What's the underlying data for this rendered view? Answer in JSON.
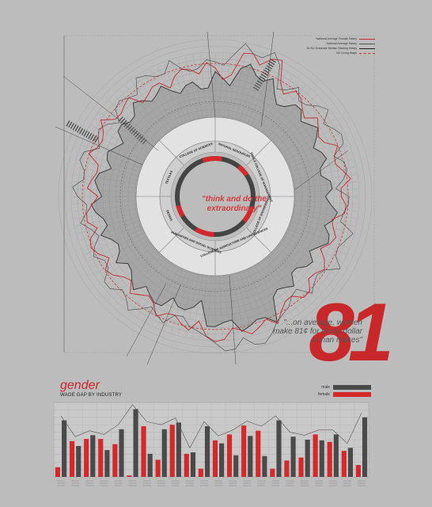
{
  "legend": {
    "items": [
      {
        "label": "National Average Female Salary",
        "color": "#c8282a",
        "style": "solid"
      },
      {
        "label": "National Average Salary",
        "color": "#555555",
        "style": "solid"
      },
      {
        "label": "NCSU Graduate Median Starting Salary",
        "color": "#222222",
        "style": "solid"
      },
      {
        "label": "NC Living Wage",
        "color": "#c8282a",
        "style": "dashed"
      }
    ]
  },
  "center_quote": "\"think and do the extraordinary\"",
  "big_number": "81",
  "quote": "\"...on average, women make 81¢ for every dollar a man makes\"",
  "colleges": [
    "NATURAL RESOURCES",
    "POOLE COLLEGE OF MANAGEMENT",
    "COLLEGE OF ENGINEERING",
    "COLLEGE OF AGRICULTURE AND LIFE SCIENCES",
    "HUMANITIES AND SOCIAL SCIENCES",
    "DESIGN",
    "TEXTILES",
    "COLLEGE OF SCIENCES"
  ],
  "gender_title": "gender",
  "gender_subtitle": "WAGE GAP BY INDUSTRY",
  "bar_legend": {
    "male": "male",
    "female": "female"
  },
  "colors": {
    "male": "#4a4a4a",
    "female": "#d4282a",
    "accent": "#c8282a"
  },
  "chart_data": {
    "type": "bar",
    "categories": [
      "1",
      "2",
      "3",
      "4",
      "5",
      "6",
      "7",
      "8",
      "9",
      "10",
      "11",
      "12",
      "13",
      "14",
      "15",
      "16",
      "17",
      "18",
      "19",
      "20",
      "21",
      "22"
    ],
    "series": [
      {
        "name": "male",
        "values": [
          1.52,
          0.83,
          1.12,
          0.72,
          1.28,
          1.82,
          0.62,
          1.28,
          1.46,
          0.66,
          1.36,
          0.9,
          0.58,
          1.1,
          0.56,
          1.52,
          1.08,
          1.0,
          0.98,
          1.14,
          0.78,
          1.6
        ]
      },
      {
        "name": "female",
        "values": [
          0.26,
          0.96,
          1.02,
          1.02,
          0.88,
          0.04,
          1.36,
          0.46,
          1.4,
          0.62,
          0.22,
          0.98,
          1.14,
          1.38,
          1.24,
          0.22,
          0.44,
          0.52,
          1.14,
          0.94,
          0.7,
          0.32
        ]
      }
    ],
    "ylim": [
      0,
      2
    ]
  }
}
